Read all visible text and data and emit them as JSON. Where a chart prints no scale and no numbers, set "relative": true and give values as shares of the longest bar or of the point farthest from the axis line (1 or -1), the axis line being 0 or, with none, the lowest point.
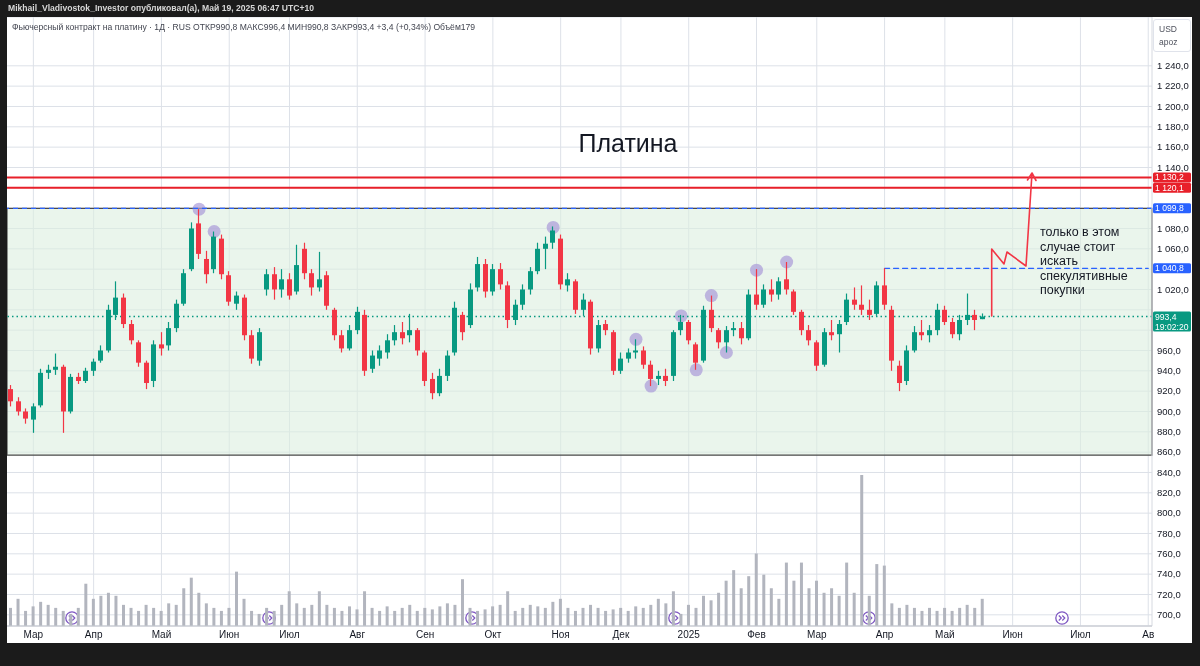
{
  "chart_data": [
    {
      "type": "candlestick",
      "title": "Платина",
      "subtitle": "Фьючерсный контракт на платину · 1Д · RUS ОТКР990,8 МАКС996,4 МИН990,8 ЗАКР993,4 +3,4 (+0,34%) Объём179",
      "ylabel": "USD\napoz",
      "annotations": [
        "Mikhail_Vladivostok_Investor опубликовал(а), Май 19, 2025 06:47 UTC+10",
        "только в этом случае стоит искать спекулятивные покупки"
      ],
      "categories": [
        null,
        null,
        null,
        "Мар",
        null,
        null,
        null,
        null,
        null,
        null,
        null,
        "Апр",
        null,
        null,
        null,
        null,
        null,
        null,
        null,
        null,
        "Май",
        null,
        null,
        null,
        null,
        null,
        null,
        null,
        null,
        "Июн",
        null,
        null,
        null,
        null,
        null,
        null,
        null,
        "Июл",
        null,
        null,
        null,
        null,
        null,
        null,
        null,
        null,
        "Авг",
        null,
        null,
        null,
        null,
        null,
        null,
        null,
        null,
        "Сен",
        null,
        null,
        null,
        null,
        null,
        null,
        null,
        null,
        "Окт",
        null,
        null,
        null,
        null,
        null,
        null,
        null,
        null,
        "Ноя",
        null,
        null,
        null,
        null,
        null,
        null,
        null,
        "Дек",
        null,
        null,
        null,
        null,
        null,
        null,
        null,
        null,
        "2025",
        null,
        null,
        null,
        null,
        null,
        null,
        null,
        null,
        "Фев",
        null,
        null,
        null,
        null,
        null,
        null,
        null,
        "Мар",
        null,
        null,
        null,
        null,
        null,
        null,
        null,
        null,
        "Апр",
        null,
        null,
        null,
        null,
        null,
        null,
        null,
        "Май",
        null,
        null,
        null,
        null,
        null,
        null,
        null,
        null,
        "Июн",
        null,
        null,
        null,
        null,
        null,
        null,
        null,
        null,
        "Июл",
        null,
        null,
        null,
        null,
        null,
        null,
        null,
        null,
        "Ав"
      ],
      "ohlc": [
        [
          922,
          926,
          905,
          910
        ],
        [
          910,
          914,
          896,
          900
        ],
        [
          900,
          903,
          888,
          893
        ],
        [
          892,
          908,
          879,
          905
        ],
        [
          906,
          942,
          904,
          938
        ],
        [
          938,
          946,
          932,
          941
        ],
        [
          941,
          957,
          936,
          944
        ],
        [
          944,
          946,
          879,
          900
        ],
        [
          900,
          937,
          898,
          934
        ],
        [
          934,
          938,
          927,
          930
        ],
        [
          930,
          943,
          928,
          940
        ],
        [
          940,
          952,
          935,
          949
        ],
        [
          950,
          965,
          948,
          960
        ],
        [
          960,
          1005,
          958,
          1000
        ],
        [
          995,
          1028,
          990,
          1012
        ],
        [
          1012,
          1016,
          982,
          986
        ],
        [
          986,
          990,
          966,
          970
        ],
        [
          968,
          970,
          944,
          948
        ],
        [
          948,
          950,
          922,
          928
        ],
        [
          930,
          970,
          924,
          966
        ],
        [
          966,
          978,
          955,
          962
        ],
        [
          965,
          988,
          960,
          982
        ],
        [
          982,
          1010,
          978,
          1006
        ],
        [
          1006,
          1040,
          1004,
          1036
        ],
        [
          1040,
          1086,
          1038,
          1080
        ],
        [
          1085,
          1099,
          1050,
          1055
        ],
        [
          1050,
          1058,
          1026,
          1035
        ],
        [
          1040,
          1077,
          1036,
          1072
        ],
        [
          1070,
          1074,
          1030,
          1035
        ],
        [
          1034,
          1038,
          1004,
          1008
        ],
        [
          1006,
          1018,
          1000,
          1014
        ],
        [
          1012,
          1015,
          970,
          975
        ],
        [
          975,
          980,
          947,
          952
        ],
        [
          950,
          982,
          945,
          978
        ],
        [
          1020,
          1040,
          1014,
          1035
        ],
        [
          1035,
          1042,
          1010,
          1020
        ],
        [
          1020,
          1040,
          1012,
          1030
        ],
        [
          1030,
          1036,
          1010,
          1014
        ],
        [
          1018,
          1064,
          1015,
          1044
        ],
        [
          1060,
          1066,
          1030,
          1036
        ],
        [
          1036,
          1040,
          1014,
          1022
        ],
        [
          1022,
          1057,
          1018,
          1030
        ],
        [
          1034,
          1038,
          1000,
          1004
        ],
        [
          1000,
          1002,
          970,
          975
        ],
        [
          975,
          980,
          958,
          962
        ],
        [
          962,
          985,
          960,
          980
        ],
        [
          980,
          1003,
          976,
          998
        ],
        [
          995,
          1000,
          935,
          940
        ],
        [
          942,
          960,
          938,
          955
        ],
        [
          952,
          965,
          945,
          960
        ],
        [
          958,
          976,
          952,
          970
        ],
        [
          970,
          985,
          965,
          978
        ],
        [
          978,
          988,
          966,
          972
        ],
        [
          975,
          996,
          968,
          980
        ],
        [
          980,
          982,
          955,
          960
        ],
        [
          958,
          960,
          925,
          930
        ],
        [
          932,
          938,
          912,
          918
        ],
        [
          918,
          942,
          915,
          935
        ],
        [
          935,
          960,
          930,
          955
        ],
        [
          958,
          1008,
          955,
          1002
        ],
        [
          995,
          998,
          970,
          978
        ],
        [
          985,
          1026,
          982,
          1020
        ],
        [
          1022,
          1052,
          1018,
          1045
        ],
        [
          1045,
          1050,
          1012,
          1018
        ],
        [
          1018,
          1045,
          1014,
          1040
        ],
        [
          1040,
          1046,
          1020,
          1025
        ],
        [
          1024,
          1028,
          982,
          990
        ],
        [
          990,
          1010,
          985,
          1005
        ],
        [
          1005,
          1025,
          1000,
          1020
        ],
        [
          1020,
          1042,
          1015,
          1038
        ],
        [
          1038,
          1066,
          1035,
          1060
        ],
        [
          1060,
          1072,
          1040,
          1065
        ],
        [
          1066,
          1082,
          1060,
          1078
        ],
        [
          1070,
          1074,
          1020,
          1025
        ],
        [
          1024,
          1036,
          1018,
          1030
        ],
        [
          1028,
          1030,
          996,
          1000
        ],
        [
          1000,
          1016,
          994,
          1010
        ],
        [
          1008,
          1010,
          956,
          962
        ],
        [
          962,
          990,
          958,
          985
        ],
        [
          986,
          990,
          975,
          980
        ],
        [
          978,
          980,
          936,
          940
        ],
        [
          940,
          958,
          937,
          952
        ],
        [
          952,
          962,
          948,
          958
        ],
        [
          958,
          971,
          952,
          960
        ],
        [
          960,
          964,
          942,
          946
        ],
        [
          946,
          950,
          925,
          932
        ],
        [
          932,
          940,
          926,
          935
        ],
        [
          935,
          942,
          925,
          930
        ],
        [
          935,
          980,
          930,
          978
        ],
        [
          980,
          995,
          975,
          988
        ],
        [
          988,
          990,
          966,
          970
        ],
        [
          966,
          968,
          941,
          948
        ],
        [
          950,
          1004,
          948,
          1000
        ],
        [
          1000,
          1014,
          978,
          982
        ],
        [
          980,
          982,
          962,
          968
        ],
        [
          968,
          984,
          958,
          980
        ],
        [
          980,
          988,
          974,
          982
        ],
        [
          982,
          988,
          966,
          972
        ],
        [
          972,
          1020,
          970,
          1015
        ],
        [
          1015,
          1040,
          1000,
          1005
        ],
        [
          1005,
          1025,
          1002,
          1020
        ],
        [
          1020,
          1030,
          1008,
          1015
        ],
        [
          1015,
          1032,
          1010,
          1028
        ],
        [
          1030,
          1047,
          1015,
          1020
        ],
        [
          1018,
          1020,
          995,
          998
        ],
        [
          998,
          1000,
          975,
          980
        ],
        [
          980,
          985,
          965,
          970
        ],
        [
          968,
          970,
          940,
          945
        ],
        [
          946,
          982,
          944,
          978
        ],
        [
          978,
          990,
          970,
          975
        ],
        [
          976,
          990,
          958,
          986
        ],
        [
          988,
          1016,
          985,
          1010
        ],
        [
          1010,
          1022,
          1000,
          1005
        ],
        [
          1005,
          1024,
          995,
          1000
        ],
        [
          1000,
          1010,
          990,
          995
        ],
        [
          996,
          1028,
          994,
          1024
        ],
        [
          1024,
          1041,
          1000,
          1005
        ],
        [
          1000,
          1004,
          940,
          950
        ],
        [
          945,
          950,
          920,
          928
        ],
        [
          930,
          965,
          926,
          960
        ],
        [
          960,
          984,
          958,
          978
        ],
        [
          978,
          990,
          970,
          975
        ],
        [
          975,
          985,
          968,
          980
        ],
        [
          980,
          1006,
          975,
          1000
        ],
        [
          1000,
          1004,
          985,
          988
        ],
        [
          988,
          992,
          972,
          976
        ],
        [
          976,
          995,
          970,
          990
        ],
        [
          990,
          1016,
          985,
          995
        ],
        [
          995,
          1000,
          980,
          990
        ],
        [
          990.8,
          996.4,
          990.8,
          993.4
        ],
        null,
        null,
        null,
        null,
        null,
        null,
        null,
        null,
        null,
        null,
        null,
        null,
        null,
        null,
        null,
        null,
        null,
        null,
        null,
        null,
        null,
        null
      ],
      "colors": [
        "#f23645",
        "#f23645",
        "#f23645",
        "#089981",
        "#089981",
        "#089981",
        "#089981",
        "#f23645",
        "#089981",
        "#f23645",
        "#089981",
        "#089981",
        "#089981",
        "#089981",
        "#089981",
        "#f23645",
        "#f23645",
        "#f23645",
        "#f23645",
        "#089981",
        "#f23645",
        "#089981",
        "#089981",
        "#089981",
        "#089981",
        "#f23645",
        "#f23645",
        "#089981",
        "#f23645",
        "#f23645",
        "#089981",
        "#f23645",
        "#f23645",
        "#089981",
        "#089981",
        "#f23645",
        "#089981",
        "#f23645",
        "#089981",
        "#f23645",
        "#f23645",
        "#089981",
        "#f23645",
        "#f23645",
        "#f23645",
        "#089981",
        "#089981",
        "#f23645",
        "#089981",
        "#089981",
        "#089981",
        "#089981",
        "#f23645",
        "#089981",
        "#f23645",
        "#f23645",
        "#f23645",
        "#089981",
        "#089981",
        "#089981",
        "#f23645",
        "#089981",
        "#089981",
        "#f23645",
        "#089981",
        "#f23645",
        "#f23645",
        "#089981",
        "#089981",
        "#089981",
        "#089981",
        "#089981",
        "#089981",
        "#f23645",
        "#089981",
        "#f23645",
        "#089981",
        "#f23645",
        "#089981",
        "#f23645",
        "#f23645",
        "#089981",
        "#089981",
        "#089981",
        "#f23645",
        "#f23645",
        "#089981",
        "#f23645",
        "#089981",
        "#089981",
        "#f23645",
        "#f23645",
        "#089981",
        "#f23645",
        "#f23645",
        "#089981",
        "#089981",
        "#f23645",
        "#089981",
        "#f23645",
        "#089981",
        "#f23645",
        "#089981",
        "#f23645",
        "#f23645",
        "#f23645",
        "#f23645",
        "#f23645",
        "#089981",
        "#f23645",
        "#089981",
        "#089981",
        "#f23645",
        "#f23645",
        "#f23645",
        "#089981",
        "#f23645",
        "#f23645",
        "#f23645",
        "#089981",
        "#089981",
        "#f23645",
        "#089981",
        "#089981",
        "#f23645",
        "#f23645",
        "#089981",
        "#089981",
        "#f23645",
        "#089981",
        null,
        null,
        null,
        null,
        null,
        null,
        null,
        null,
        null,
        null,
        null,
        null,
        null,
        null,
        null,
        null,
        null,
        null,
        null,
        null,
        null,
        null
      ],
      "series": [
        {
          "type": "scatter",
          "color": "#a99ad9",
          "marker": "circle",
          "values": [
            null,
            null,
            null,
            null,
            null,
            null,
            null,
            null,
            null,
            null,
            null,
            null,
            null,
            null,
            null,
            null,
            null,
            null,
            null,
            null,
            null,
            null,
            null,
            null,
            null,
            1099,
            null,
            1077,
            null,
            null,
            null,
            null,
            null,
            null,
            null,
            null,
            null,
            null,
            null,
            null,
            null,
            null,
            null,
            null,
            null,
            null,
            null,
            null,
            null,
            null,
            null,
            null,
            null,
            null,
            null,
            null,
            null,
            null,
            null,
            null,
            null,
            null,
            null,
            null,
            null,
            null,
            null,
            null,
            null,
            null,
            null,
            null,
            1081,
            null,
            null,
            null,
            null,
            null,
            null,
            null,
            null,
            null,
            null,
            971,
            null,
            925,
            null,
            null,
            null,
            994,
            null,
            941,
            null,
            1014,
            null,
            958,
            null,
            null,
            null,
            1039,
            null,
            null,
            null,
            1047,
            null,
            null,
            null,
            null,
            null,
            null,
            null,
            null,
            null,
            null,
            null,
            null,
            null,
            null,
            null,
            null,
            null,
            null,
            null,
            null,
            null,
            null,
            null,
            null,
            null,
            null,
            null,
            null,
            null,
            null,
            null,
            null,
            null,
            null,
            null,
            null,
            null,
            null,
            null,
            null,
            null,
            null,
            null,
            null,
            null,
            null,
            null,
            null
          ]
        },
        {
          "type": "line",
          "name": "1 040,8",
          "color": "#2962ff",
          "line_style": "dashed",
          "values": [
            null,
            null,
            null,
            null,
            null,
            null,
            null,
            null,
            null,
            null,
            null,
            null,
            null,
            null,
            null,
            null,
            null,
            null,
            null,
            null,
            null,
            null,
            null,
            null,
            null,
            null,
            null,
            null,
            null,
            null,
            null,
            null,
            null,
            null,
            null,
            null,
            null,
            null,
            null,
            null,
            null,
            null,
            null,
            null,
            null,
            null,
            null,
            null,
            null,
            null,
            null,
            null,
            null,
            null,
            null,
            null,
            null,
            null,
            null,
            null,
            null,
            null,
            null,
            null,
            null,
            null,
            null,
            null,
            null,
            null,
            null,
            null,
            null,
            null,
            null,
            null,
            null,
            null,
            null,
            null,
            null,
            null,
            null,
            null,
            null,
            null,
            null,
            null,
            null,
            null,
            null,
            null,
            null,
            null,
            null,
            null,
            null,
            null,
            null,
            null,
            null,
            null,
            null,
            null,
            null,
            null,
            null,
            null,
            null,
            null,
            null,
            null,
            null,
            null,
            null,
            null,
            1040.8,
            1040.8,
            1040.8,
            1040.8,
            1040.8,
            1040.8,
            1040.8,
            1040.8,
            1040.8,
            1040.8,
            1040.8,
            1040.8,
            1040.8,
            1040.8,
            1040.8,
            1040.8,
            1040.8,
            1040.8,
            1040.8,
            1040.8,
            1040.8,
            1040.8,
            1040.8,
            1040.8,
            1040.8,
            1040.8,
            1040.8,
            1040.8,
            1040.8,
            1040.8,
            1040.8,
            1040.8,
            1040.8,
            1040.8,
            1040.8,
            1040.8
          ]
        }
      ],
      "ylim": [
        689,
        1288
      ],
      "yticks": [
        {
          "value": 700,
          "label": "700,0"
        },
        {
          "value": 720,
          "label": "720,0"
        },
        {
          "value": 740,
          "label": "740,0"
        },
        {
          "value": 760,
          "label": "760,0"
        },
        {
          "value": 780,
          "label": "780,0"
        },
        {
          "value": 800,
          "label": "800,0"
        },
        {
          "value": 820,
          "label": "820,0"
        },
        {
          "value": 840,
          "label": "840,0"
        },
        {
          "value": 860,
          "label": "860,0"
        },
        {
          "value": 880,
          "label": "880,0"
        },
        {
          "value": 900,
          "label": "900,0"
        },
        {
          "value": 920,
          "label": "920,0"
        },
        {
          "value": 940,
          "label": "940,0"
        },
        {
          "value": 960,
          "label": "960,0"
        },
        {
          "value": 980,
          "label": null
        },
        {
          "value": 1000,
          "label": null
        },
        {
          "value": 1020,
          "label": "1 020,0"
        },
        {
          "value": 1040,
          "label": null
        },
        {
          "value": 1060,
          "label": "1 060,0"
        },
        {
          "value": 1080,
          "label": "1 080,0"
        },
        {
          "value": 1100,
          "label": null
        },
        {
          "value": 1120,
          "label": null
        },
        {
          "value": 1140,
          "label": "1 140,0"
        },
        {
          "value": 1160,
          "label": "1 160,0"
        },
        {
          "value": 1180,
          "label": "1 180,0"
        },
        {
          "value": 1200,
          "label": "1 200,0"
        },
        {
          "value": 1220,
          "label": "1 220,0"
        },
        {
          "value": 1240,
          "label": "1 240,0"
        }
      ],
      "grid": true,
      "ref_lines": [
        {
          "axis": "y",
          "value": 1130.2,
          "label": "1 130,2",
          "color": "#e8202a"
        },
        {
          "axis": "y",
          "value": 1120.1,
          "label": "1 120,1",
          "color": "#e8202a"
        },
        {
          "axis": "y",
          "value": 1099.8,
          "label": "1 099,8",
          "color": "#2962ff",
          "line_style": "dashed"
        },
        {
          "axis": "y",
          "value": 993.4,
          "label": "993,4\n19:02:20",
          "color": "#089981",
          "line_style": "dotted"
        }
      ],
      "bands": [
        {
          "axis": "y",
          "from": 857,
          "to": 1099.8,
          "color": "#dceedf"
        }
      ]
    },
    {
      "type": "bar",
      "relative": true,
      "color": "#b2b5be",
      "categories": [
        null,
        null,
        null,
        null,
        null,
        null,
        null,
        null,
        null,
        null,
        null,
        null,
        null,
        null,
        null,
        null,
        null,
        null,
        null,
        null,
        null,
        null,
        null,
        null,
        null,
        null,
        null,
        null,
        null,
        null,
        null,
        null,
        null,
        null,
        null,
        null,
        null,
        null,
        null,
        null,
        null,
        null,
        null,
        null,
        null,
        null,
        null,
        null,
        null,
        null,
        null,
        null,
        null,
        null,
        null,
        null,
        null,
        null,
        null,
        null,
        null,
        null,
        null,
        null,
        null,
        null,
        null,
        null,
        null,
        null,
        null,
        null,
        null,
        null,
        null,
        null,
        null,
        null,
        null,
        null,
        null,
        null,
        null,
        null,
        null,
        null,
        null,
        null,
        null,
        null,
        null,
        null,
        null,
        null,
        null,
        null,
        null,
        null,
        null,
        null,
        null,
        null,
        null,
        null,
        null,
        null,
        null,
        null,
        null,
        null,
        null,
        null,
        null,
        null,
        null,
        null,
        null,
        null,
        null,
        null,
        null,
        null,
        null,
        null,
        null,
        null,
        null,
        null,
        null,
        null,
        null,
        null,
        null,
        null,
        null,
        null,
        null,
        null,
        null,
        null,
        null,
        null,
        null,
        null,
        null,
        null,
        null,
        null,
        null,
        null,
        null,
        null
      ],
      "values": [
        0.12,
        0.18,
        0.1,
        0.13,
        0.16,
        0.14,
        0.12,
        0.1,
        0.08,
        0.12,
        0.28,
        0.18,
        0.2,
        0.22,
        0.2,
        0.14,
        0.12,
        0.1,
        0.14,
        0.12,
        0.1,
        0.15,
        0.14,
        0.25,
        0.32,
        0.22,
        0.15,
        0.12,
        0.1,
        0.12,
        0.36,
        0.18,
        0.1,
        0.08,
        0.12,
        0.1,
        0.14,
        0.23,
        0.15,
        0.12,
        0.14,
        0.23,
        0.14,
        0.12,
        0.1,
        0.13,
        0.11,
        0.23,
        0.12,
        0.1,
        0.13,
        0.1,
        0.12,
        0.14,
        0.1,
        0.12,
        0.11,
        0.13,
        0.15,
        0.14,
        0.31,
        0.12,
        0.1,
        0.11,
        0.13,
        0.14,
        0.23,
        0.1,
        0.12,
        0.14,
        0.13,
        0.12,
        0.16,
        0.18,
        0.12,
        0.1,
        0.12,
        0.14,
        0.12,
        0.1,
        0.11,
        0.12,
        0.1,
        0.13,
        0.12,
        0.14,
        0.18,
        0.15,
        0.23,
        0.08,
        0.14,
        0.12,
        0.2,
        0.17,
        0.22,
        0.3,
        0.37,
        0.25,
        0.33,
        0.48,
        0.34,
        0.25,
        0.18,
        0.42,
        0.3,
        0.42,
        0.25,
        0.3,
        0.22,
        0.25,
        0.2,
        0.42,
        0.22,
        1,
        0.2,
        0.41,
        0.4,
        0.15,
        0.12,
        0.14,
        0.12,
        0.1,
        0.12,
        0.1,
        0.12,
        0.1,
        0.12,
        0.14,
        0.12,
        0.18,
        null,
        null,
        null,
        null,
        null,
        null,
        null,
        null,
        null,
        null,
        null,
        null,
        null,
        null,
        null,
        null,
        null,
        null,
        null,
        null,
        null,
        null
      ]
    }
  ]
}
